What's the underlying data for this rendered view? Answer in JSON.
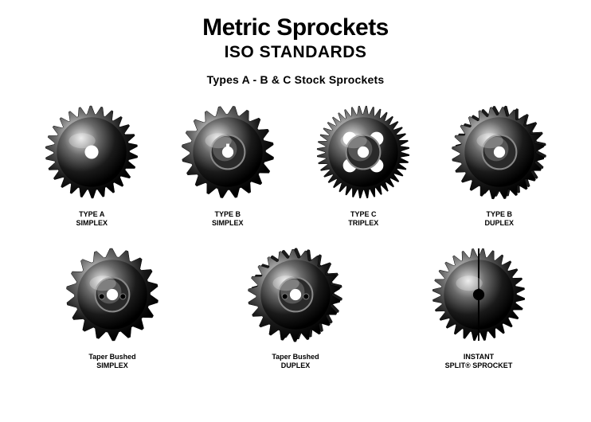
{
  "title": "Metric Sprockets",
  "subtitle": "ISO STANDARDS",
  "subhead": "Types A - B & C Stock Sprockets",
  "colors": {
    "background": "#ffffff",
    "text": "#000000",
    "sprocket_dark": "#0a0a0a",
    "sprocket_mid": "#3a3a3a",
    "sprocket_light": "#b8b8b8",
    "sprocket_highlight": "#e8e8e8"
  },
  "typography": {
    "title_fontsize": 30,
    "subtitle_fontsize": 21,
    "subhead_fontsize": 14,
    "label_fontsize": 9,
    "font_family": "Arial"
  },
  "row1": [
    {
      "label_line1": "TYPE A",
      "label_line2": "SIMPLEX",
      "type": "flat",
      "teeth": 26,
      "hub": false,
      "depth": 1
    },
    {
      "label_line1": "TYPE B",
      "label_line2": "SIMPLEX",
      "type": "hub",
      "teeth": 20,
      "hub": true,
      "depth": 1
    },
    {
      "label_line1": "TYPE C",
      "label_line2": "TRIPLEX",
      "type": "holes",
      "teeth": 40,
      "hub": true,
      "depth": 1,
      "holes": 4
    },
    {
      "label_line1": "TYPE B",
      "label_line2": "DUPLEX",
      "type": "duplex",
      "teeth": 24,
      "hub": true,
      "depth": 2
    }
  ],
  "row2": [
    {
      "label_line1": "Taper Bushed",
      "label_line2": "SIMPLEX",
      "type": "taper",
      "teeth": 18,
      "hub": true,
      "depth": 1
    },
    {
      "label_line1": "Taper Bushed",
      "label_line2": "DUPLEX",
      "type": "taper-duplex",
      "teeth": 22,
      "hub": true,
      "depth": 2
    },
    {
      "label_line1": "INSTANT",
      "label_line2": "SPLIT® SPROCKET",
      "type": "split",
      "teeth": 28,
      "hub": false,
      "depth": 1
    }
  ]
}
